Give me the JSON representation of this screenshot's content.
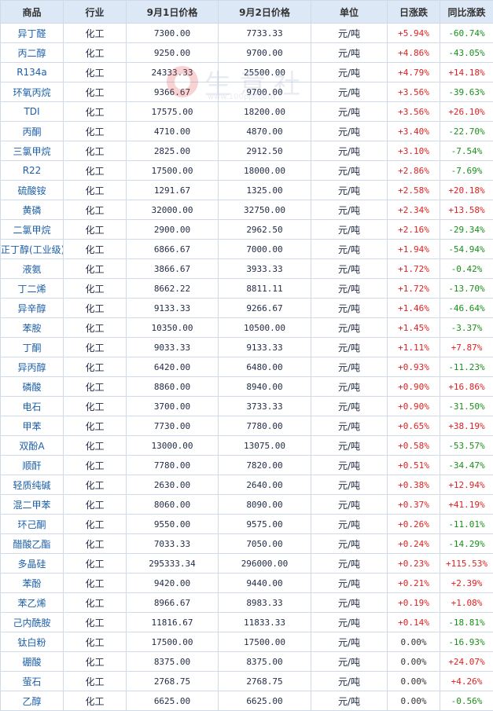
{
  "table": {
    "headers": [
      "商品",
      "行业",
      "9月1日价格",
      "9月2日价格",
      "单位",
      "日涨跌",
      "同比涨跌"
    ],
    "rows": [
      {
        "name": "异丁醛",
        "industry": "化工",
        "p1": "7300.00",
        "p2": "7733.33",
        "unit": "元/吨",
        "daily": "+5.94%",
        "yoy": "-60.74%"
      },
      {
        "name": "丙二醇",
        "industry": "化工",
        "p1": "9250.00",
        "p2": "9700.00",
        "unit": "元/吨",
        "daily": "+4.86%",
        "yoy": "-43.05%"
      },
      {
        "name": "R134a",
        "industry": "化工",
        "p1": "24333.33",
        "p2": "25500.00",
        "unit": "元/吨",
        "daily": "+4.79%",
        "yoy": "+14.18%"
      },
      {
        "name": "环氧丙烷",
        "industry": "化工",
        "p1": "9366.67",
        "p2": "9700.00",
        "unit": "元/吨",
        "daily": "+3.56%",
        "yoy": "-39.63%"
      },
      {
        "name": "TDI",
        "industry": "化工",
        "p1": "17575.00",
        "p2": "18200.00",
        "unit": "元/吨",
        "daily": "+3.56%",
        "yoy": "+26.10%"
      },
      {
        "name": "丙酮",
        "industry": "化工",
        "p1": "4710.00",
        "p2": "4870.00",
        "unit": "元/吨",
        "daily": "+3.40%",
        "yoy": "-22.70%"
      },
      {
        "name": "三氯甲烷",
        "industry": "化工",
        "p1": "2825.00",
        "p2": "2912.50",
        "unit": "元/吨",
        "daily": "+3.10%",
        "yoy": "-7.54%"
      },
      {
        "name": "R22",
        "industry": "化工",
        "p1": "17500.00",
        "p2": "18000.00",
        "unit": "元/吨",
        "daily": "+2.86%",
        "yoy": "-7.69%"
      },
      {
        "name": "硫酸铵",
        "industry": "化工",
        "p1": "1291.67",
        "p2": "1325.00",
        "unit": "元/吨",
        "daily": "+2.58%",
        "yoy": "+20.18%"
      },
      {
        "name": "黄磷",
        "industry": "化工",
        "p1": "32000.00",
        "p2": "32750.00",
        "unit": "元/吨",
        "daily": "+2.34%",
        "yoy": "+13.58%"
      },
      {
        "name": "二氯甲烷",
        "industry": "化工",
        "p1": "2900.00",
        "p2": "2962.50",
        "unit": "元/吨",
        "daily": "+2.16%",
        "yoy": "-29.34%"
      },
      {
        "name": "正丁醇(工业级)",
        "industry": "化工",
        "p1": "6866.67",
        "p2": "7000.00",
        "unit": "元/吨",
        "daily": "+1.94%",
        "yoy": "-54.94%"
      },
      {
        "name": "液氨",
        "industry": "化工",
        "p1": "3866.67",
        "p2": "3933.33",
        "unit": "元/吨",
        "daily": "+1.72%",
        "yoy": "-0.42%"
      },
      {
        "name": "丁二烯",
        "industry": "化工",
        "p1": "8662.22",
        "p2": "8811.11",
        "unit": "元/吨",
        "daily": "+1.72%",
        "yoy": "-13.70%"
      },
      {
        "name": "异辛醇",
        "industry": "化工",
        "p1": "9133.33",
        "p2": "9266.67",
        "unit": "元/吨",
        "daily": "+1.46%",
        "yoy": "-46.64%"
      },
      {
        "name": "苯胺",
        "industry": "化工",
        "p1": "10350.00",
        "p2": "10500.00",
        "unit": "元/吨",
        "daily": "+1.45%",
        "yoy": "-3.37%"
      },
      {
        "name": "丁酮",
        "industry": "化工",
        "p1": "9033.33",
        "p2": "9133.33",
        "unit": "元/吨",
        "daily": "+1.11%",
        "yoy": "+7.87%"
      },
      {
        "name": "异丙醇",
        "industry": "化工",
        "p1": "6420.00",
        "p2": "6480.00",
        "unit": "元/吨",
        "daily": "+0.93%",
        "yoy": "-11.23%"
      },
      {
        "name": "磷酸",
        "industry": "化工",
        "p1": "8860.00",
        "p2": "8940.00",
        "unit": "元/吨",
        "daily": "+0.90%",
        "yoy": "+16.86%"
      },
      {
        "name": "电石",
        "industry": "化工",
        "p1": "3700.00",
        "p2": "3733.33",
        "unit": "元/吨",
        "daily": "+0.90%",
        "yoy": "-31.50%"
      },
      {
        "name": "甲苯",
        "industry": "化工",
        "p1": "7730.00",
        "p2": "7780.00",
        "unit": "元/吨",
        "daily": "+0.65%",
        "yoy": "+38.19%"
      },
      {
        "name": "双酚A",
        "industry": "化工",
        "p1": "13000.00",
        "p2": "13075.00",
        "unit": "元/吨",
        "daily": "+0.58%",
        "yoy": "-53.57%"
      },
      {
        "name": "顺酐",
        "industry": "化工",
        "p1": "7780.00",
        "p2": "7820.00",
        "unit": "元/吨",
        "daily": "+0.51%",
        "yoy": "-34.47%"
      },
      {
        "name": "轻质纯碱",
        "industry": "化工",
        "p1": "2630.00",
        "p2": "2640.00",
        "unit": "元/吨",
        "daily": "+0.38%",
        "yoy": "+12.94%"
      },
      {
        "name": "混二甲苯",
        "industry": "化工",
        "p1": "8060.00",
        "p2": "8090.00",
        "unit": "元/吨",
        "daily": "+0.37%",
        "yoy": "+41.19%"
      },
      {
        "name": "环己酮",
        "industry": "化工",
        "p1": "9550.00",
        "p2": "9575.00",
        "unit": "元/吨",
        "daily": "+0.26%",
        "yoy": "-11.01%"
      },
      {
        "name": "醋酸乙酯",
        "industry": "化工",
        "p1": "7033.33",
        "p2": "7050.00",
        "unit": "元/吨",
        "daily": "+0.24%",
        "yoy": "-14.29%"
      },
      {
        "name": "多晶硅",
        "industry": "化工",
        "p1": "295333.34",
        "p2": "296000.00",
        "unit": "元/吨",
        "daily": "+0.23%",
        "yoy": "+115.53%"
      },
      {
        "name": "苯酚",
        "industry": "化工",
        "p1": "9420.00",
        "p2": "9440.00",
        "unit": "元/吨",
        "daily": "+0.21%",
        "yoy": "+2.39%"
      },
      {
        "name": "苯乙烯",
        "industry": "化工",
        "p1": "8966.67",
        "p2": "8983.33",
        "unit": "元/吨",
        "daily": "+0.19%",
        "yoy": "+1.08%"
      },
      {
        "name": "己内酰胺",
        "industry": "化工",
        "p1": "11816.67",
        "p2": "11833.33",
        "unit": "元/吨",
        "daily": "+0.14%",
        "yoy": "-18.81%"
      },
      {
        "name": "钛白粉",
        "industry": "化工",
        "p1": "17500.00",
        "p2": "17500.00",
        "unit": "元/吨",
        "daily": "0.00%",
        "yoy": "-16.93%"
      },
      {
        "name": "硼酸",
        "industry": "化工",
        "p1": "8375.00",
        "p2": "8375.00",
        "unit": "元/吨",
        "daily": "0.00%",
        "yoy": "+24.07%"
      },
      {
        "name": "萤石",
        "industry": "化工",
        "p1": "2768.75",
        "p2": "2768.75",
        "unit": "元/吨",
        "daily": "0.00%",
        "yoy": "+4.26%"
      },
      {
        "name": "乙醇",
        "industry": "化工",
        "p1": "6625.00",
        "p2": "6625.00",
        "unit": "元/吨",
        "daily": "0.00%",
        "yoy": "-0.56%"
      }
    ]
  },
  "watermark": {
    "text": "生意社",
    "url": "www.100ppi.com"
  },
  "colors": {
    "header_bg": "#dde8f6",
    "border": "#cfd9e8",
    "name_link": "#1c5fa8",
    "up": "#e02020",
    "down": "#1a8f1a",
    "flat": "#333333"
  }
}
